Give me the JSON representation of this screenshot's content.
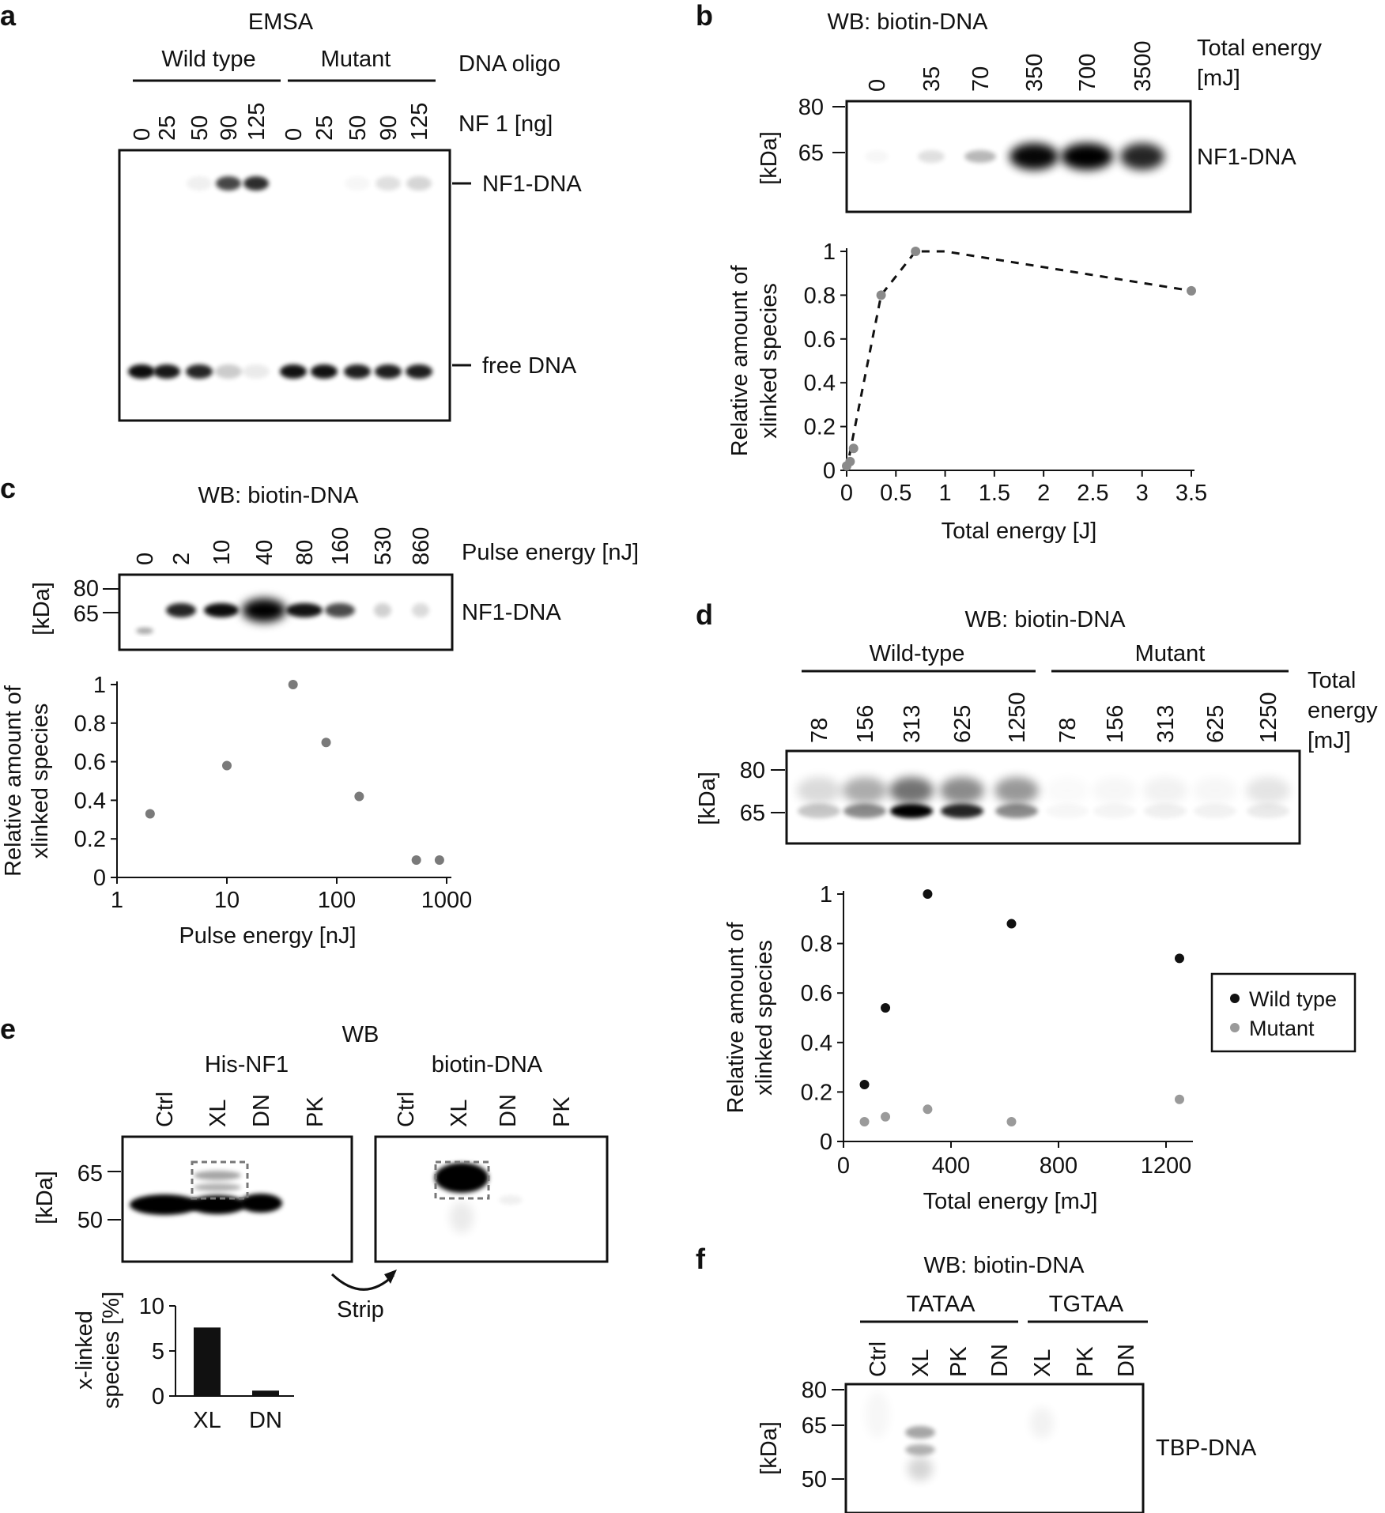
{
  "panel_a": {
    "label": "a",
    "title": "EMSA",
    "group_header": "DNA oligo",
    "groups": [
      "Wild type",
      "Mutant"
    ],
    "lane_header": "NF 1 [ng]",
    "lanes": [
      "0",
      "25",
      "50",
      "90",
      "125",
      "0",
      "25",
      "50",
      "90",
      "125"
    ],
    "band_labels": [
      "NF1-DNA",
      "free DNA"
    ]
  },
  "panel_b": {
    "label": "b",
    "title": "WB: biotin-DNA",
    "lane_header_line1": "Total energy",
    "lane_header_line2": "[mJ]",
    "lanes": [
      "0",
      "35",
      "70",
      "350",
      "700",
      "3500"
    ],
    "markers": [
      "80",
      "65"
    ],
    "marker_unit": "[kDa]",
    "band_label": "NF1-DNA",
    "chart_data": {
      "type": "line",
      "xlabel": "Total energy [J]",
      "ylabel_line1": "Relative amount of",
      "ylabel_line2": "xlinked species",
      "xlim": [
        0,
        3.5
      ],
      "ylim": [
        0,
        1
      ],
      "xticks": [
        "0",
        "0.5",
        "1",
        "1.5",
        "2",
        "2.5",
        "3",
        "3.5"
      ],
      "yticks": [
        "0",
        "0.2",
        "0.4",
        "0.6",
        "0.8",
        "1"
      ],
      "x": [
        0,
        0.035,
        0.07,
        0.35,
        0.7,
        3.5
      ],
      "y": [
        0.02,
        0.04,
        0.1,
        0.8,
        1.0,
        0.82
      ],
      "fit_x": [
        0,
        0.05,
        0.35,
        0.7,
        1.0,
        3.5
      ],
      "fit_y": [
        0.0,
        0.12,
        0.8,
        1.0,
        1.0,
        0.82
      ]
    }
  },
  "panel_c": {
    "label": "c",
    "title": "WB: biotin-DNA",
    "lane_header": "Pulse energy [nJ]",
    "lanes": [
      "0",
      "2",
      "10",
      "40",
      "80",
      "160",
      "530",
      "860"
    ],
    "markers": [
      "80",
      "65"
    ],
    "marker_unit": "[kDa]",
    "band_label": "NF1-DNA",
    "chart_data": {
      "type": "scatter",
      "xlabel": "Pulse energy [nJ]",
      "ylabel_line1": "Relative amount of",
      "ylabel_line2": "xlinked species",
      "xscale": "log",
      "xlim": [
        1,
        1000
      ],
      "ylim": [
        0,
        1
      ],
      "xticks": [
        "1",
        "10",
        "100",
        "1000"
      ],
      "yticks": [
        "0",
        "0.2",
        "0.4",
        "0.6",
        "0.8",
        "1"
      ],
      "x": [
        2,
        10,
        40,
        80,
        160,
        530,
        860
      ],
      "y": [
        0.33,
        0.58,
        1.0,
        0.7,
        0.42,
        0.09,
        0.09
      ]
    }
  },
  "panel_d": {
    "label": "d",
    "title": "WB: biotin-DNA",
    "groups": [
      "Wild-type",
      "Mutant"
    ],
    "lane_header_line1": "Total",
    "lane_header_line2": "energy",
    "lane_header_line3": "[mJ]",
    "lanes": [
      "78",
      "156",
      "313",
      "625",
      "1250",
      "78",
      "156",
      "313",
      "625",
      "1250"
    ],
    "markers": [
      "80",
      "65"
    ],
    "marker_unit": "[kDa]",
    "chart_data": {
      "type": "scatter",
      "xlabel": "Total energy [mJ]",
      "ylabel_line1": "Relative amount of",
      "ylabel_line2": "xlinked species",
      "xlim": [
        0,
        1300
      ],
      "ylim": [
        0,
        1
      ],
      "xticks": [
        "0",
        "400",
        "800",
        "1200"
      ],
      "yticks": [
        "0",
        "0.2",
        "0.4",
        "0.6",
        "0.8",
        "1"
      ],
      "legend_position": "right",
      "series": [
        {
          "name": "Wild type",
          "color": "#111111",
          "x": [
            78,
            156,
            313,
            625,
            1250
          ],
          "y": [
            0.23,
            0.54,
            1.0,
            0.88,
            0.74
          ]
        },
        {
          "name": "Mutant",
          "color": "#9a9a9a",
          "x": [
            78,
            156,
            313,
            625,
            1250
          ],
          "y": [
            0.08,
            0.1,
            0.13,
            0.08,
            0.17
          ]
        }
      ]
    }
  },
  "panel_e": {
    "label": "e",
    "title": "WB",
    "blot1_title": "His-NF1",
    "blot2_title": "biotin-DNA",
    "lanes": [
      "Ctrl",
      "XL",
      "DN",
      "PK"
    ],
    "markers": [
      "65",
      "50"
    ],
    "marker_unit": "[kDa]",
    "arrow_label": "Strip",
    "chart_data": {
      "type": "bar",
      "ylabel_line1": "x-linked",
      "ylabel_line2": "species [%]",
      "categories": [
        "XL",
        "DN"
      ],
      "values": [
        7.6,
        0.6
      ],
      "ylim": [
        0,
        10
      ],
      "yticks": [
        "0",
        "5",
        "10"
      ]
    }
  },
  "panel_f": {
    "label": "f",
    "title": "WB: biotin-DNA",
    "groups": [
      "TATAA",
      "TGTAA"
    ],
    "lanes": [
      "Ctrl",
      "XL",
      "PK",
      "DN",
      "XL",
      "PK",
      "DN"
    ],
    "markers": [
      "80",
      "65",
      "50"
    ],
    "marker_unit": "[kDa]",
    "band_label": "TBP-DNA"
  }
}
